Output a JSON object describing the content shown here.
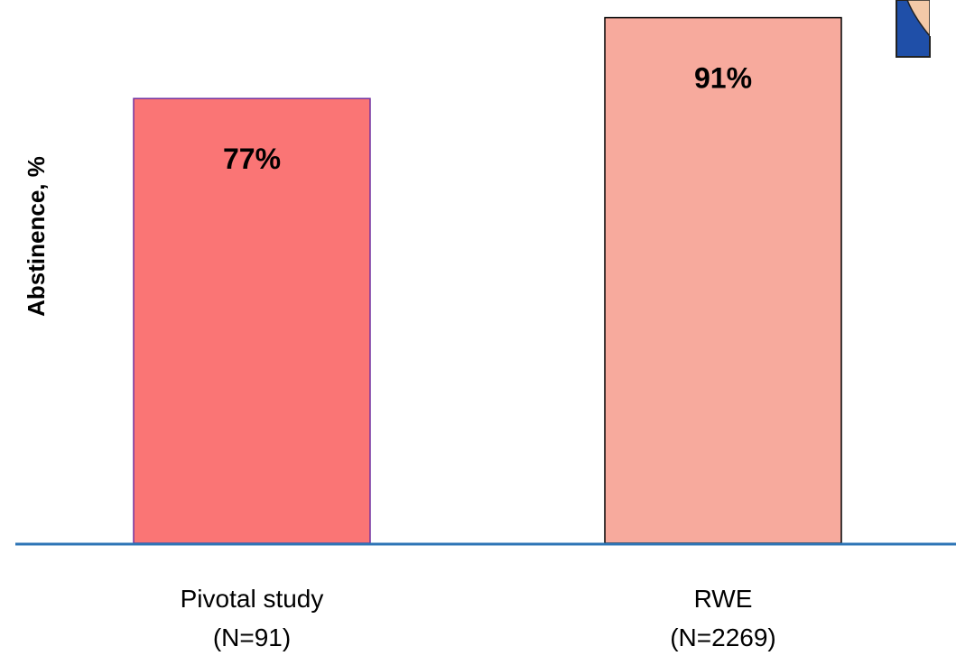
{
  "chart_data": {
    "type": "bar",
    "ylabel": "Abstinence, %",
    "categories": [
      {
        "line1": "Pivotal study",
        "line2": "(N=91)"
      },
      {
        "line1": "RWE",
        "line2": "(N=2269)"
      }
    ],
    "values": [
      77,
      91
    ],
    "value_labels": [
      "77%",
      "91%"
    ],
    "colors": [
      "#FA7575",
      "#F7AA9D"
    ],
    "edge_colors": [
      "#7030A0",
      "#000000"
    ],
    "axis_color": "#2E75B6",
    "ylim": [
      0,
      92.5
    ],
    "grid": false,
    "legend": "none"
  },
  "decoration": {
    "corner_image": "illustration-fragment"
  }
}
